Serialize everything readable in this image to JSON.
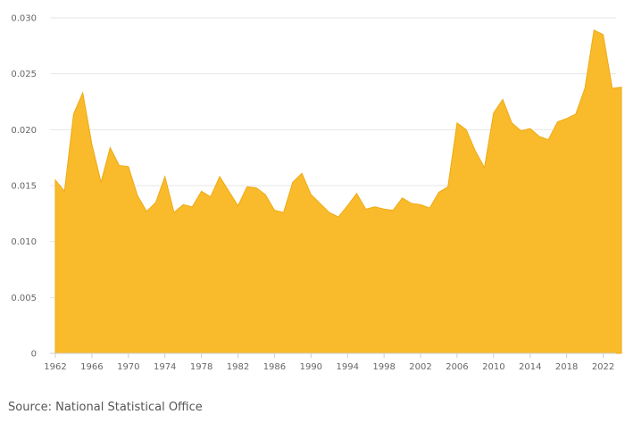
{
  "colors": {
    "area_fill": "#f9bb2b",
    "area_stroke": "#eeaa14",
    "grid": "#e6e6e6",
    "axis": "#cccccc",
    "text": "#666666"
  },
  "source": "Source: National Statistical Office",
  "chart_data": {
    "type": "area",
    "title": "",
    "xlabel": "",
    "ylabel": "",
    "xlim": [
      1962,
      2024
    ],
    "ylim": [
      0,
      0.03
    ],
    "yticks": [
      "0",
      "0.005",
      "0.010",
      "0.015",
      "0.020",
      "0.025",
      "0.030"
    ],
    "xticks": [
      "1962",
      "1966",
      "1970",
      "1974",
      "1978",
      "1982",
      "1986",
      "1990",
      "1994",
      "1998",
      "2002",
      "2006",
      "2010",
      "2014",
      "2018",
      "2022"
    ],
    "grid": true,
    "legend": "none",
    "series": [
      {
        "x": [
          1962,
          1963,
          1964,
          1965,
          1966,
          1967,
          1968,
          1969,
          1970,
          1971,
          1972,
          1973,
          1974,
          1975,
          1976,
          1977,
          1978,
          1979,
          1980,
          1981,
          1982,
          1983,
          1984,
          1985,
          1986,
          1987,
          1988,
          1989,
          1990,
          1991,
          1992,
          1993,
          1994,
          1995,
          1996,
          1997,
          1998,
          1999,
          2000,
          2001,
          2002,
          2003,
          2004,
          2005,
          2006,
          2007,
          2008,
          2009,
          2010,
          2011,
          2012,
          2013,
          2014,
          2015,
          2016,
          2017,
          2018,
          2019,
          2020,
          2021,
          2022,
          2023,
          2024
        ],
        "values": [
          0.0155,
          0.0145,
          0.0214,
          0.0233,
          0.0187,
          0.0153,
          0.0184,
          0.0168,
          0.0167,
          0.0141,
          0.0127,
          0.0135,
          0.0158,
          0.0126,
          0.0133,
          0.0131,
          0.0145,
          0.014,
          0.0158,
          0.0145,
          0.0132,
          0.0149,
          0.0148,
          0.0142,
          0.0128,
          0.0126,
          0.0153,
          0.0161,
          0.0142,
          0.0134,
          0.0126,
          0.0122,
          0.0132,
          0.0143,
          0.0129,
          0.0131,
          0.0129,
          0.0128,
          0.0139,
          0.0134,
          0.0133,
          0.013,
          0.0144,
          0.0149,
          0.0206,
          0.02,
          0.0181,
          0.0166,
          0.0215,
          0.0227,
          0.0206,
          0.0199,
          0.0201,
          0.0194,
          0.0191,
          0.0207,
          0.021,
          0.0214,
          0.0237,
          0.0289,
          0.0285,
          0.0237,
          0.0238
        ]
      }
    ]
  }
}
